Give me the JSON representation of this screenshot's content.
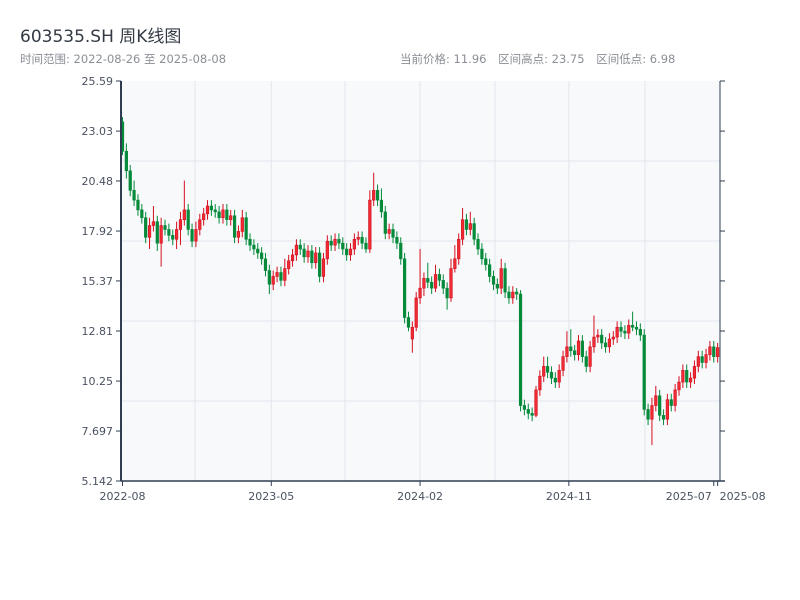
{
  "header": {
    "title": "603535.SH 周K线图",
    "range_label": "时间范围: 2022-08-26 至 2025-08-08",
    "current_price": "当前价格: 11.96",
    "range_high": "区间高点: 23.75",
    "range_low": "区间低点: 6.98"
  },
  "colors": {
    "up": "#d40f1f",
    "down": "#058a3a",
    "axis": "#2e3d50",
    "grid": "#e2e6ec",
    "plot_bg": "#f7f9fb"
  },
  "chart_data": {
    "type": "candlestick",
    "title": "603535.SH 周K线图",
    "start_date": "2022-08-26",
    "end_date": "2025-08-08",
    "frequency": "weekly",
    "ylim": [
      5.142,
      25.59
    ],
    "y_ticks": [
      "25.59",
      "23.03",
      "20.48",
      "17.92",
      "15.37",
      "12.81",
      "10.25",
      "7.697",
      "5.142"
    ],
    "x_ticks": [
      {
        "label": "2022-08",
        "week": 0
      },
      {
        "label": "2023-05",
        "week": 38.5
      },
      {
        "label": "2024-02",
        "week": 77
      },
      {
        "label": "2024-11",
        "week": 115.5
      },
      {
        "label": "2025-07",
        "week": 153
      },
      {
        "label": "2025-08",
        "week": 154
      }
    ],
    "grid": true,
    "ohlc_fields": [
      "open",
      "high",
      "low",
      "close"
    ],
    "ohlc": [
      [
        23.5,
        23.75,
        21.8,
        22.0
      ],
      [
        22.0,
        22.4,
        20.6,
        21.0
      ],
      [
        21.0,
        21.3,
        19.7,
        20.0
      ],
      [
        20.0,
        20.5,
        19.2,
        19.5
      ],
      [
        19.5,
        19.8,
        18.7,
        19.0
      ],
      [
        19.0,
        19.3,
        18.3,
        18.6
      ],
      [
        18.6,
        18.9,
        17.3,
        17.6
      ],
      [
        17.6,
        18.6,
        17.0,
        18.2
      ],
      [
        18.2,
        19.2,
        17.9,
        18.4
      ],
      [
        18.4,
        18.7,
        16.9,
        17.3
      ],
      [
        17.3,
        18.6,
        16.1,
        18.2
      ],
      [
        18.2,
        18.5,
        17.7,
        18.0
      ],
      [
        18.0,
        18.3,
        17.4,
        17.7
      ],
      [
        17.7,
        18.0,
        17.2,
        17.5
      ],
      [
        17.5,
        18.4,
        17.0,
        18.0
      ],
      [
        18.0,
        18.9,
        17.2,
        18.5
      ],
      [
        18.5,
        20.5,
        18.2,
        19.0
      ],
      [
        19.0,
        19.3,
        17.7,
        18.0
      ],
      [
        18.0,
        18.3,
        17.1,
        17.4
      ],
      [
        17.4,
        18.4,
        17.1,
        18.0
      ],
      [
        18.0,
        18.8,
        17.7,
        18.5
      ],
      [
        18.5,
        19.1,
        18.2,
        18.8
      ],
      [
        18.8,
        19.5,
        18.5,
        19.2
      ],
      [
        19.2,
        19.5,
        18.7,
        19.0
      ],
      [
        19.0,
        19.3,
        18.6,
        18.9
      ],
      [
        18.9,
        19.2,
        18.3,
        18.6
      ],
      [
        18.6,
        19.3,
        18.3,
        19.0
      ],
      [
        19.0,
        19.3,
        18.2,
        18.5
      ],
      [
        18.5,
        19.0,
        18.2,
        18.7
      ],
      [
        18.7,
        19.0,
        17.3,
        17.6
      ],
      [
        17.6,
        18.2,
        17.3,
        17.9
      ],
      [
        17.9,
        19.0,
        17.6,
        18.6
      ],
      [
        18.6,
        18.9,
        17.2,
        17.5
      ],
      [
        17.5,
        17.8,
        16.9,
        17.2
      ],
      [
        17.2,
        17.5,
        16.7,
        17.0
      ],
      [
        17.0,
        17.3,
        16.5,
        16.8
      ],
      [
        16.8,
        17.1,
        16.2,
        16.5
      ],
      [
        16.5,
        16.8,
        15.6,
        15.9
      ],
      [
        15.9,
        16.2,
        14.7,
        15.2
      ],
      [
        15.2,
        15.9,
        14.9,
        15.6
      ],
      [
        15.6,
        16.1,
        15.3,
        15.8
      ],
      [
        15.8,
        16.1,
        15.1,
        15.4
      ],
      [
        15.4,
        16.5,
        15.1,
        16.0
      ],
      [
        16.0,
        16.7,
        15.7,
        16.4
      ],
      [
        16.4,
        17.0,
        16.1,
        16.7
      ],
      [
        16.7,
        17.5,
        16.4,
        17.2
      ],
      [
        17.2,
        17.5,
        16.7,
        17.0
      ],
      [
        17.0,
        17.3,
        16.3,
        16.6
      ],
      [
        16.6,
        17.2,
        16.3,
        16.9
      ],
      [
        16.9,
        17.2,
        16.0,
        16.3
      ],
      [
        16.3,
        17.1,
        16.0,
        16.8
      ],
      [
        16.8,
        17.1,
        15.3,
        15.6
      ],
      [
        15.6,
        16.8,
        15.3,
        16.5
      ],
      [
        16.5,
        17.7,
        16.2,
        17.4
      ],
      [
        17.4,
        17.7,
        16.9,
        17.2
      ],
      [
        17.2,
        17.8,
        16.9,
        17.5
      ],
      [
        17.5,
        17.8,
        17.0,
        17.3
      ],
      [
        17.3,
        17.6,
        16.7,
        17.0
      ],
      [
        17.0,
        17.3,
        16.4,
        16.7
      ],
      [
        16.7,
        17.3,
        16.4,
        17.0
      ],
      [
        17.0,
        17.8,
        16.7,
        17.5
      ],
      [
        17.5,
        17.9,
        17.2,
        17.6
      ],
      [
        17.6,
        17.9,
        17.0,
        17.3
      ],
      [
        17.3,
        17.6,
        16.8,
        17.0
      ],
      [
        17.0,
        20.0,
        16.8,
        19.5
      ],
      [
        19.5,
        20.9,
        19.2,
        20.0
      ],
      [
        20.0,
        20.3,
        19.2,
        19.5
      ],
      [
        19.5,
        20.1,
        18.6,
        18.9
      ],
      [
        18.9,
        19.2,
        17.5,
        17.8
      ],
      [
        17.8,
        18.3,
        17.5,
        18.0
      ],
      [
        18.0,
        18.3,
        17.3,
        17.6
      ],
      [
        17.6,
        17.9,
        17.0,
        17.3
      ],
      [
        17.3,
        17.6,
        16.2,
        16.5
      ],
      [
        16.5,
        16.8,
        13.2,
        13.5
      ],
      [
        13.5,
        13.8,
        12.8,
        13.0
      ],
      [
        12.4,
        13.3,
        11.7,
        13.0
      ],
      [
        13.0,
        14.8,
        12.8,
        14.5
      ],
      [
        14.5,
        17.0,
        14.2,
        15.0
      ],
      [
        15.0,
        15.8,
        14.6,
        15.5
      ],
      [
        15.5,
        16.3,
        15.0,
        15.3
      ],
      [
        15.3,
        15.6,
        14.7,
        15.0
      ],
      [
        15.0,
        16.2,
        14.8,
        15.7
      ],
      [
        15.7,
        16.0,
        15.1,
        15.4
      ],
      [
        15.4,
        15.7,
        14.7,
        15.0
      ],
      [
        15.0,
        15.3,
        13.9,
        14.5
      ],
      [
        14.5,
        16.5,
        14.3,
        16.0
      ],
      [
        16.0,
        17.2,
        15.8,
        16.5
      ],
      [
        16.5,
        17.8,
        16.2,
        17.5
      ],
      [
        17.5,
        19.1,
        17.2,
        18.5
      ],
      [
        18.5,
        18.8,
        17.7,
        18.0
      ],
      [
        18.0,
        18.9,
        17.7,
        18.3
      ],
      [
        18.3,
        18.6,
        17.2,
        17.5
      ],
      [
        17.5,
        17.8,
        16.7,
        17.0
      ],
      [
        17.0,
        17.3,
        16.2,
        16.5
      ],
      [
        16.5,
        16.8,
        15.9,
        16.2
      ],
      [
        16.2,
        16.5,
        15.3,
        15.6
      ],
      [
        15.6,
        15.9,
        14.9,
        15.2
      ],
      [
        15.2,
        15.5,
        14.7,
        15.0
      ],
      [
        15.0,
        16.5,
        14.7,
        16.0
      ],
      [
        16.0,
        16.3,
        14.5,
        14.8
      ],
      [
        14.8,
        15.1,
        14.2,
        14.5
      ],
      [
        14.5,
        15.1,
        14.2,
        14.8
      ],
      [
        14.8,
        15.0,
        14.4,
        14.7
      ],
      [
        14.7,
        14.9,
        8.7,
        9.0
      ],
      [
        9.0,
        9.3,
        8.5,
        8.8
      ],
      [
        8.8,
        9.1,
        8.3,
        8.6
      ],
      [
        8.6,
        8.9,
        8.2,
        8.5
      ],
      [
        8.5,
        10.0,
        8.4,
        9.8
      ],
      [
        9.8,
        10.8,
        9.5,
        10.5
      ],
      [
        10.5,
        11.5,
        10.2,
        11.0
      ],
      [
        11.0,
        11.5,
        10.4,
        10.7
      ],
      [
        10.7,
        11.0,
        10.1,
        10.4
      ],
      [
        10.4,
        10.7,
        9.9,
        10.2
      ],
      [
        10.2,
        11.1,
        9.9,
        10.8
      ],
      [
        10.8,
        11.8,
        10.5,
        11.5
      ],
      [
        11.5,
        12.8,
        11.2,
        12.0
      ],
      [
        12.0,
        12.9,
        11.5,
        11.8
      ],
      [
        11.8,
        12.1,
        11.3,
        11.6
      ],
      [
        11.6,
        12.6,
        11.3,
        12.3
      ],
      [
        12.3,
        12.6,
        11.2,
        11.5
      ],
      [
        11.5,
        11.8,
        10.7,
        11.0
      ],
      [
        11.0,
        12.3,
        10.7,
        12.0
      ],
      [
        12.0,
        13.6,
        11.7,
        12.5
      ],
      [
        12.5,
        12.9,
        12.2,
        12.6
      ],
      [
        12.6,
        12.9,
        11.9,
        12.2
      ],
      [
        12.2,
        12.5,
        11.7,
        12.0
      ],
      [
        12.0,
        12.7,
        11.7,
        12.4
      ],
      [
        12.4,
        12.8,
        12.1,
        12.5
      ],
      [
        12.5,
        13.3,
        12.2,
        13.0
      ],
      [
        13.0,
        13.3,
        12.5,
        12.8
      ],
      [
        12.8,
        13.1,
        12.4,
        12.7
      ],
      [
        12.7,
        13.4,
        12.4,
        13.1
      ],
      [
        13.1,
        13.8,
        12.8,
        13.0
      ],
      [
        13.0,
        13.3,
        12.6,
        12.9
      ],
      [
        12.9,
        13.2,
        12.3,
        12.6
      ],
      [
        12.6,
        12.9,
        8.5,
        8.8
      ],
      [
        8.8,
        9.1,
        8.0,
        8.3
      ],
      [
        8.3,
        9.4,
        6.98,
        9.0
      ],
      [
        9.0,
        10.0,
        8.7,
        9.5
      ],
      [
        9.5,
        9.8,
        8.2,
        8.5
      ],
      [
        8.5,
        8.8,
        8.0,
        8.3
      ],
      [
        8.3,
        9.6,
        8.0,
        9.3
      ],
      [
        9.3,
        9.6,
        8.7,
        9.0
      ],
      [
        9.0,
        10.1,
        8.7,
        9.8
      ],
      [
        9.8,
        10.5,
        9.5,
        10.2
      ],
      [
        10.2,
        11.1,
        9.9,
        10.8
      ],
      [
        10.8,
        11.1,
        9.9,
        10.2
      ],
      [
        10.2,
        10.7,
        9.9,
        10.4
      ],
      [
        10.4,
        11.3,
        10.1,
        11.0
      ],
      [
        11.0,
        11.8,
        10.7,
        11.5
      ],
      [
        11.5,
        11.8,
        10.9,
        11.2
      ],
      [
        11.2,
        11.9,
        10.9,
        11.6
      ],
      [
        11.6,
        12.3,
        11.3,
        12.0
      ],
      [
        12.0,
        12.3,
        11.2,
        11.5
      ],
      [
        11.5,
        12.2,
        11.2,
        11.96
      ]
    ]
  }
}
